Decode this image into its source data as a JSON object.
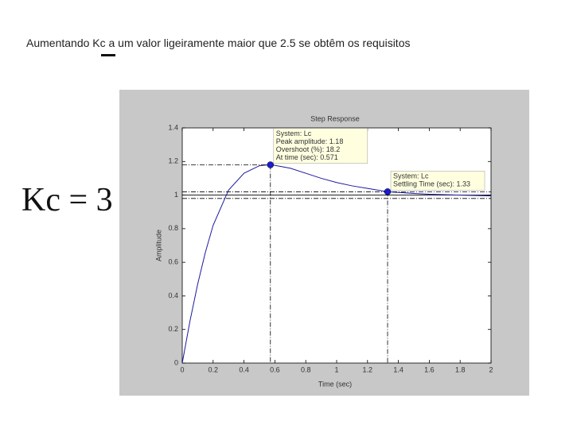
{
  "heading": "Aumentando Kc a um valor ligeiramente maior que 2.5 se obtêm os requisitos",
  "formula": "Kc = 3",
  "chart_data": {
    "type": "line",
    "title": "Step Response",
    "xlabel": "Time (sec)",
    "ylabel": "Amplitude",
    "x": [
      0,
      0.05,
      0.1,
      0.15,
      0.2,
      0.3,
      0.4,
      0.5,
      0.571,
      0.7,
      0.8,
      0.9,
      1.0,
      1.1,
      1.2,
      1.33,
      1.5,
      1.6,
      1.8,
      2.0
    ],
    "series": [
      {
        "name": "Lc",
        "color": "#1a1aa0",
        "values": [
          0,
          0.25,
          0.47,
          0.66,
          0.82,
          1.03,
          1.13,
          1.175,
          1.182,
          1.16,
          1.13,
          1.1,
          1.075,
          1.055,
          1.04,
          1.02,
          1.01,
          1.005,
          1.0,
          0.995
        ]
      }
    ],
    "xlim": [
      0,
      2
    ],
    "ylim": [
      0,
      1.4
    ],
    "xticks": [
      0,
      0.2,
      0.4,
      0.6,
      0.8,
      1,
      1.2,
      1.4,
      1.6,
      1.8,
      2
    ],
    "yticks": [
      0,
      0.2,
      0.4,
      0.6,
      0.8,
      1,
      1.2,
      1.4
    ],
    "final_value": 1,
    "settling_band": [
      0.98,
      1.02
    ],
    "tips": [
      {
        "x": 0.571,
        "y": 1.18,
        "lines": [
          "System: Lc",
          "Peak amplitude: 1.18",
          "Overshoot (%): 18.2",
          "At time (sec): 0.571"
        ]
      },
      {
        "x": 1.33,
        "y": 1.02,
        "lines": [
          "System: Lc",
          "Settling Time (sec): 1.33"
        ]
      }
    ]
  }
}
